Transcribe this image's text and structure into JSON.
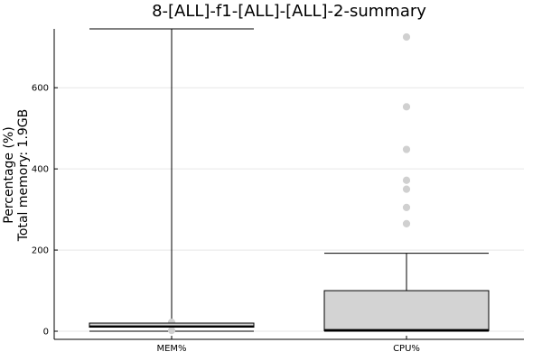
{
  "chart_data": {
    "type": "box",
    "title": "8-[ALL]-f1-[ALL]-[ALL]-2-summary",
    "ylabel_lines": [
      "Percentage (%)",
      "Total memory: 1.9GB"
    ],
    "xlabel": "",
    "ylim": [
      -20,
      745
    ],
    "yticks": [
      0,
      200,
      400,
      600
    ],
    "grid": true,
    "legend": "none",
    "categories": [
      "MEM%",
      "CPU%"
    ],
    "boxes": [
      {
        "category": "MEM%",
        "min": 0,
        "q1": 10,
        "median": 12,
        "q3": 20,
        "max": 745,
        "outliers": [
          2,
          20,
          22
        ]
      },
      {
        "category": "CPU%",
        "min": 0,
        "q1": 1,
        "median": 3,
        "q3": 100,
        "max": 192,
        "outliers": [
          265,
          305,
          350,
          372,
          448,
          553,
          725
        ]
      }
    ],
    "colors": {
      "box_fill": "#d3d3d3",
      "outlier": "#d0d0d0",
      "grid": "#e6e6e6",
      "axis": "#000000"
    }
  }
}
